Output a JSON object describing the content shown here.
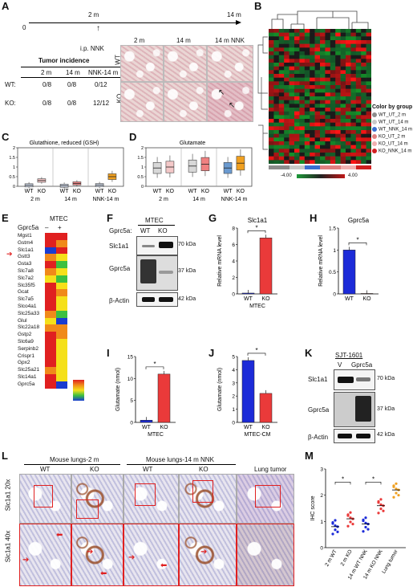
{
  "panels": {
    "A": "A",
    "B": "B",
    "C": "C",
    "D": "D",
    "E": "E",
    "F": "F",
    "G": "G",
    "H": "H",
    "I": "I",
    "J": "J",
    "K": "K",
    "L": "L",
    "M": "M"
  },
  "panelA": {
    "timeline": {
      "t0": "0",
      "t2": "2 m",
      "t14": "14 m",
      "inj": "i.p. NNK"
    },
    "table": {
      "title": "Tumor incidence",
      "cols": [
        "2 m",
        "14 m",
        "NNK-14 m"
      ],
      "rows": [
        {
          "label": "WT:",
          "vals": [
            "0/8",
            "0/8",
            "0/12"
          ]
        },
        {
          "label": "KO:",
          "vals": [
            "0/8",
            "0/8",
            "12/12"
          ]
        }
      ]
    },
    "histo_cols": [
      "2 m",
      "14 m",
      "14 m NNK"
    ],
    "histo_rows": [
      "WT",
      "KO"
    ]
  },
  "panelB": {
    "legend_title": "Color by group",
    "groups": [
      {
        "name": "WT_UT_2 m",
        "color": "#8c8c8c"
      },
      {
        "name": "WT_UT_14 m",
        "color": "#c8c8c8"
      },
      {
        "name": "WT_NNK_14 m",
        "color": "#3a6fd0"
      },
      {
        "name": "KO_UT_2 m",
        "color": "#e08080"
      },
      {
        "name": "KO_UT_14 m",
        "color": "#f0b0b0"
      },
      {
        "name": "KO_NNK_14 m",
        "color": "#d02020"
      }
    ],
    "scale_min": "-4.00",
    "scale_max": "4.00"
  },
  "chart_data": [
    {
      "panel": "C",
      "type": "box",
      "title": "Glutathione, reduced (GSH)",
      "groups": [
        "2 m",
        "14 m",
        "NNK-14 m"
      ],
      "categories": [
        "WT",
        "KO"
      ],
      "boxes": [
        {
          "label": "WT 2 m",
          "median": 0.05
        },
        {
          "label": "KO 2 m",
          "median": 0.3
        },
        {
          "label": "WT 14 m",
          "median": 0.03
        },
        {
          "label": "KO 14 m",
          "median": 0.15
        },
        {
          "label": "WT NNK-14 m",
          "median": 0.06
        },
        {
          "label": "KO NNK-14 m",
          "median": 0.5
        }
      ],
      "ylim": [
        0,
        2
      ],
      "yticks": [
        "0",
        "0.5",
        "1",
        "1.5",
        "2"
      ]
    },
    {
      "panel": "D",
      "type": "box",
      "title": "Glutamate",
      "groups": [
        "2 m",
        "14 m",
        "NNK-14 m"
      ],
      "categories": [
        "WT",
        "KO"
      ],
      "boxes": [
        {
          "label": "WT 2 m",
          "median": 0.95
        },
        {
          "label": "KO 2 m",
          "median": 1.0
        },
        {
          "label": "WT 14 m",
          "median": 1.05
        },
        {
          "label": "KO 14 m",
          "median": 1.15
        },
        {
          "label": "WT NNK-14 m",
          "median": 0.95
        },
        {
          "label": "KO NNK-14 m",
          "median": 1.2
        }
      ],
      "ylim": [
        0,
        2
      ],
      "yticks": [
        "0",
        "0.5",
        "1",
        "1.5",
        "2"
      ]
    },
    {
      "panel": "G",
      "type": "bar",
      "title": "Slc1a1",
      "ylabel": "Relative mRNA level",
      "categories": [
        "WT",
        "KO"
      ],
      "values": [
        0.1,
        6.8
      ],
      "ylim": [
        0,
        8
      ],
      "yticks": [
        "0",
        "2",
        "4",
        "6",
        "8"
      ],
      "xlabel": "MTEC"
    },
    {
      "panel": "H",
      "type": "bar",
      "title": "Gprc5a",
      "ylabel": "Relative mRNA level",
      "categories": [
        "WT",
        "KO"
      ],
      "values": [
        1.0,
        0.01
      ],
      "ylim": [
        0,
        1.5
      ],
      "yticks": [
        "0",
        "0.5",
        "1",
        "1.5"
      ]
    },
    {
      "panel": "I",
      "type": "bar",
      "ylabel": "Glutamate (nmol)",
      "categories": [
        "WT",
        "KO"
      ],
      "values": [
        0.5,
        11
      ],
      "ylim": [
        0,
        15
      ],
      "yticks": [
        "0",
        "5",
        "10",
        "15"
      ],
      "xlabel": "MTEC"
    },
    {
      "panel": "J",
      "type": "bar",
      "ylabel": "Glutamate (nmol)",
      "categories": [
        "WT",
        "KO"
      ],
      "values": [
        4.7,
        2.2
      ],
      "ylim": [
        0,
        5
      ],
      "yticks": [
        "0",
        "1",
        "2",
        "3",
        "4",
        "5"
      ],
      "xlabel": "MTEC-CM"
    },
    {
      "panel": "M",
      "type": "scatter",
      "ylabel": "IHC score",
      "categories": [
        "2 m WT",
        "2 m KO",
        "14 m WT NNK",
        "14 m KO NNK",
        "Lung tumor"
      ],
      "means": [
        0.8,
        1.1,
        0.9,
        1.6,
        2.2
      ],
      "ylim": [
        0,
        3
      ],
      "yticks": [
        "0",
        "1",
        "2",
        "3"
      ]
    }
  ],
  "panelE": {
    "title": "MTEC",
    "header": "Gprc5a",
    "minus": "–",
    "plus": "+",
    "genes": [
      "Mgst1",
      "Gstm4",
      "Slc1a1",
      "Gstt3",
      "Gsta3",
      "Slc7a8",
      "Slc7a2",
      "Slc35f5",
      "Gcat",
      "Slc7a5",
      "Slco4a1",
      "Slc25a33",
      "Glul",
      "Slc22a18",
      "Gstp2",
      "Slc6a9",
      "Serpinb2",
      "Crispr1",
      "Gpx2",
      "Slc25a21",
      "Slc14a1",
      "Gprc5a"
    ]
  },
  "panelF": {
    "title": "MTEC",
    "col_label": "Gprc5a:",
    "wt": "WT",
    "ko": "KO",
    "rows": [
      {
        "name": "Slc1a1",
        "kda": "70 kDa"
      },
      {
        "name": "Gprc5a",
        "kda": "37 kDa"
      },
      {
        "name": "β-Actin",
        "kda": "42 kDa"
      }
    ]
  },
  "panelK": {
    "title": "SJT-1601",
    "v": "V",
    "g": "Gprc5a",
    "rows": [
      {
        "name": "Slc1a1",
        "kda": "70 kDa"
      },
      {
        "name": "Gprc5a",
        "kda": "37 kDa"
      },
      {
        "name": "β-Actin",
        "kda": "42 kDa"
      }
    ]
  },
  "panelL": {
    "head1": "Mouse lungs-2 m",
    "head2": "Mouse lungs-14 m NNK",
    "head3": "Lung tumor",
    "sub": [
      "WT",
      "KO",
      "WT",
      "KO"
    ],
    "row1": "Slc1a1 20x",
    "row2": "Slc1a1 40x"
  },
  "star": "*"
}
